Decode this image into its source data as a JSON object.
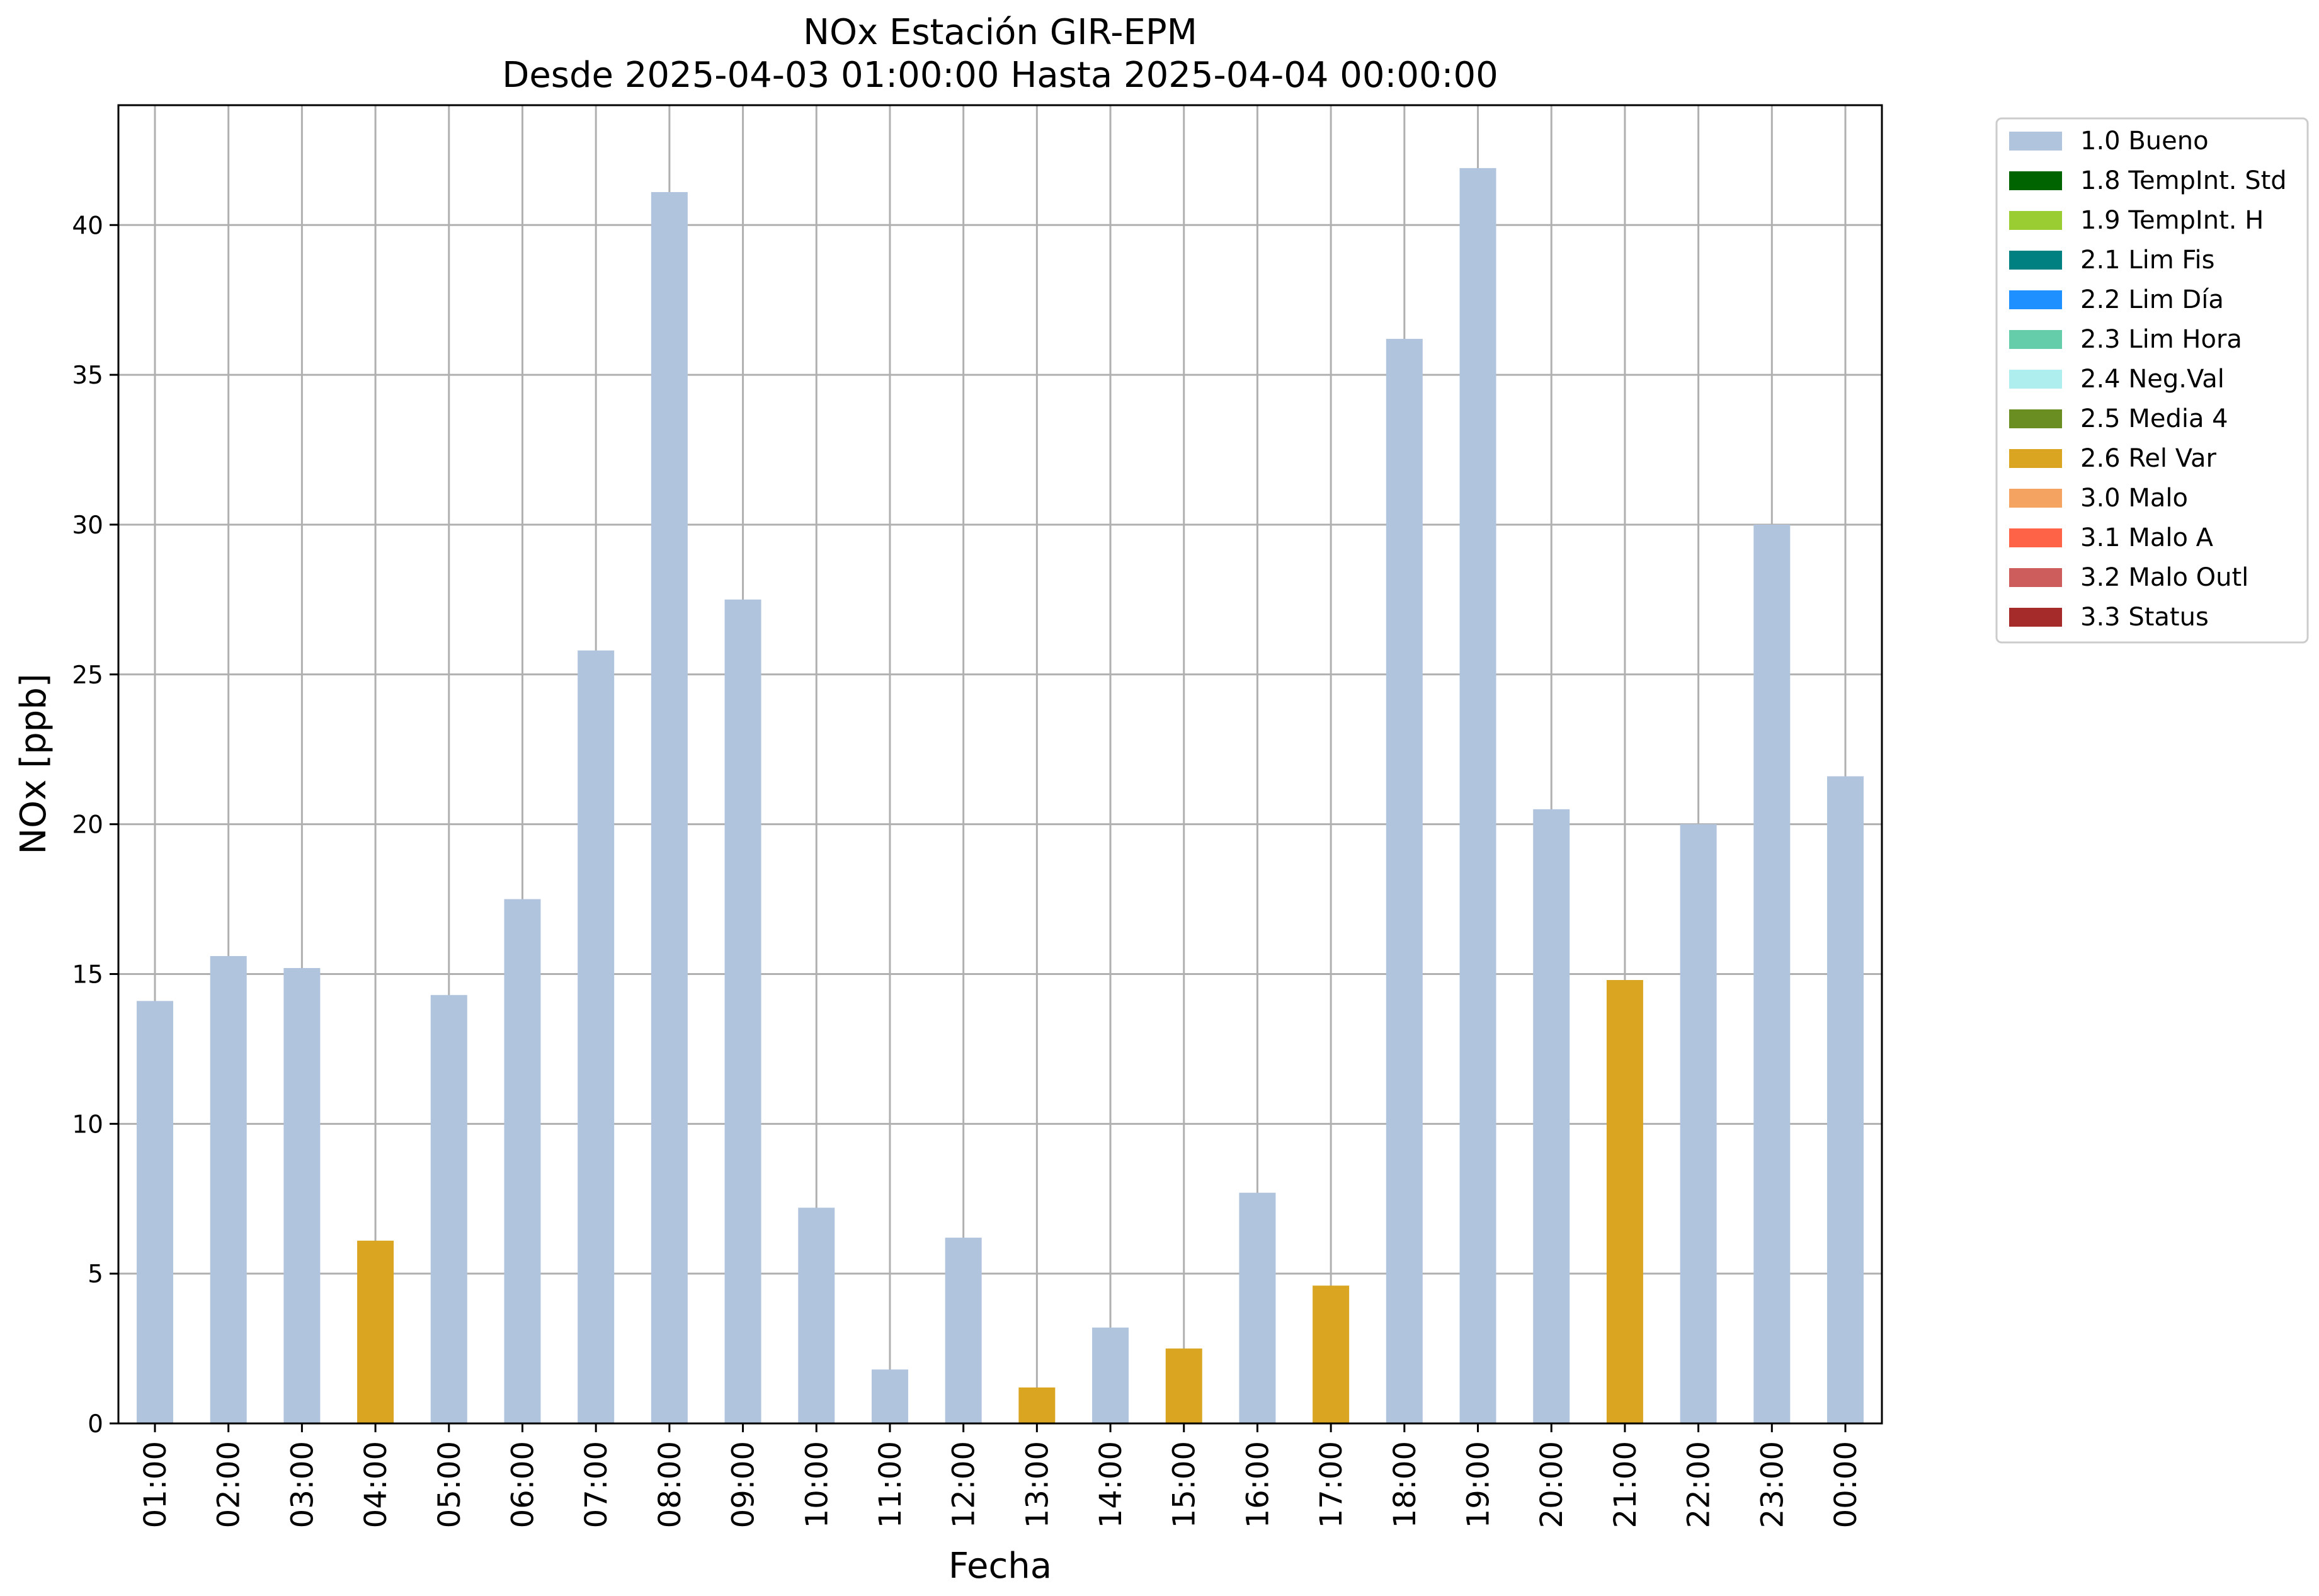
{
  "chart_data": {
    "type": "bar",
    "title": "NOx Estación GIR-EPM",
    "subtitle": "Desde 2025-04-03 01:00:00 Hasta 2025-04-04 00:00:00",
    "xlabel": "Fecha",
    "ylabel": "NOx [ppb]",
    "ylim": [
      0,
      44
    ],
    "yticks": [
      0,
      5,
      10,
      15,
      20,
      25,
      30,
      35,
      40
    ],
    "grid": true,
    "legend_position": "outside-right",
    "categories": [
      "01:00",
      "02:00",
      "03:00",
      "04:00",
      "05:00",
      "06:00",
      "07:00",
      "08:00",
      "09:00",
      "10:00",
      "11:00",
      "12:00",
      "13:00",
      "14:00",
      "15:00",
      "16:00",
      "17:00",
      "18:00",
      "19:00",
      "20:00",
      "21:00",
      "22:00",
      "23:00",
      "00:00"
    ],
    "values": [
      14.1,
      15.6,
      15.2,
      6.1,
      14.3,
      17.5,
      25.8,
      41.1,
      27.5,
      7.2,
      1.8,
      6.2,
      1.2,
      3.2,
      2.5,
      7.7,
      4.6,
      36.2,
      41.9,
      20.5,
      14.8,
      20.0,
      30.0,
      21.6
    ],
    "flags": [
      "1.0 Bueno",
      "1.0 Bueno",
      "1.0 Bueno",
      "2.6 Rel Var",
      "1.0 Bueno",
      "1.0 Bueno",
      "1.0 Bueno",
      "1.0 Bueno",
      "1.0 Bueno",
      "1.0 Bueno",
      "1.0 Bueno",
      "1.0 Bueno",
      "2.6 Rel Var",
      "1.0 Bueno",
      "2.6 Rel Var",
      "1.0 Bueno",
      "2.6 Rel Var",
      "1.0 Bueno",
      "1.0 Bueno",
      "1.0 Bueno",
      "2.6 Rel Var",
      "1.0 Bueno",
      "1.0 Bueno",
      "1.0 Bueno"
    ],
    "legend": [
      {
        "label": "1.0 Bueno",
        "color": "#b0c4de"
      },
      {
        "label": "1.8 TempInt. Std",
        "color": "#006400"
      },
      {
        "label": "1.9 TempInt. H",
        "color": "#9acd32"
      },
      {
        "label": "2.1 Lim Fis",
        "color": "#008080"
      },
      {
        "label": "2.2 Lim Día",
        "color": "#1e90ff"
      },
      {
        "label": "2.3 Lim Hora",
        "color": "#66cdaa"
      },
      {
        "label": "2.4 Neg.Val",
        "color": "#afeeee"
      },
      {
        "label": "2.5 Media 4",
        "color": "#6b8e23"
      },
      {
        "label": "2.6 Rel Var",
        "color": "#daa520"
      },
      {
        "label": "3.0 Malo",
        "color": "#f4a460"
      },
      {
        "label": "3.1 Malo A",
        "color": "#ff6347"
      },
      {
        "label": "3.2 Malo Outl",
        "color": "#cd5c5c"
      },
      {
        "label": "3.3 Status",
        "color": "#a52a2a"
      }
    ]
  }
}
